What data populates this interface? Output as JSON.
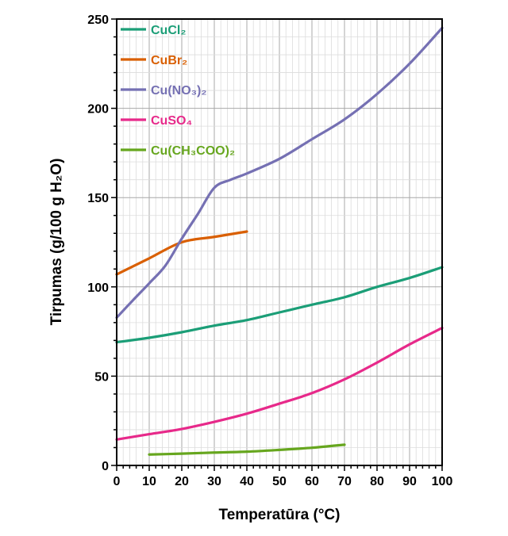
{
  "chart_data": {
    "type": "line",
    "title": "",
    "xlabel": "Temperatūra (°C)",
    "ylabel": "Tirpumas (g/100 g H₂O)",
    "xlim": [
      0,
      100
    ],
    "ylim": [
      0,
      250
    ],
    "xticks": [
      0,
      10,
      20,
      30,
      40,
      50,
      60,
      70,
      80,
      90,
      100
    ],
    "yticks": [
      0,
      50,
      100,
      150,
      200,
      250
    ],
    "grid": true,
    "legend_position": "top-left",
    "series": [
      {
        "name": "CuCl₂",
        "color": "#1b9e77",
        "x": [
          0,
          10,
          20,
          30,
          40,
          50,
          60,
          70,
          80,
          90,
          100
        ],
        "y": [
          69,
          71.5,
          74.6,
          78.3,
          81.4,
          85.7,
          90,
          94.2,
          100,
          105,
          111
        ]
      },
      {
        "name": "CuBr₂",
        "color": "#d95f02",
        "x": [
          0,
          10,
          20,
          30,
          40
        ],
        "y": [
          107,
          116,
          125,
          128,
          131
        ]
      },
      {
        "name": "Cu(NO₃)₂",
        "color": "#7570b3",
        "x": [
          0,
          5,
          10,
          15,
          20,
          25,
          30,
          35,
          40,
          50,
          60,
          70,
          80,
          90,
          100
        ],
        "y": [
          82.8,
          92.5,
          102,
          112,
          127,
          141,
          155.5,
          160,
          163.5,
          171.7,
          182.7,
          193.8,
          208,
          225,
          245
        ]
      },
      {
        "name": "CuSO₄",
        "color": "#e7298a",
        "x": [
          0,
          10,
          20,
          30,
          40,
          50,
          60,
          70,
          80,
          90,
          100
        ],
        "y": [
          14.5,
          17.5,
          20.4,
          24.4,
          29,
          34.6,
          40.5,
          48.2,
          57.6,
          67.8,
          77
        ]
      },
      {
        "name": "Cu(CH₃COO)₂",
        "color": "#66a61e",
        "x": [
          10,
          20,
          30,
          40,
          50,
          60,
          70
        ],
        "y": [
          6.1,
          6.6,
          7.2,
          7.7,
          8.7,
          9.9,
          11.6
        ]
      }
    ]
  }
}
